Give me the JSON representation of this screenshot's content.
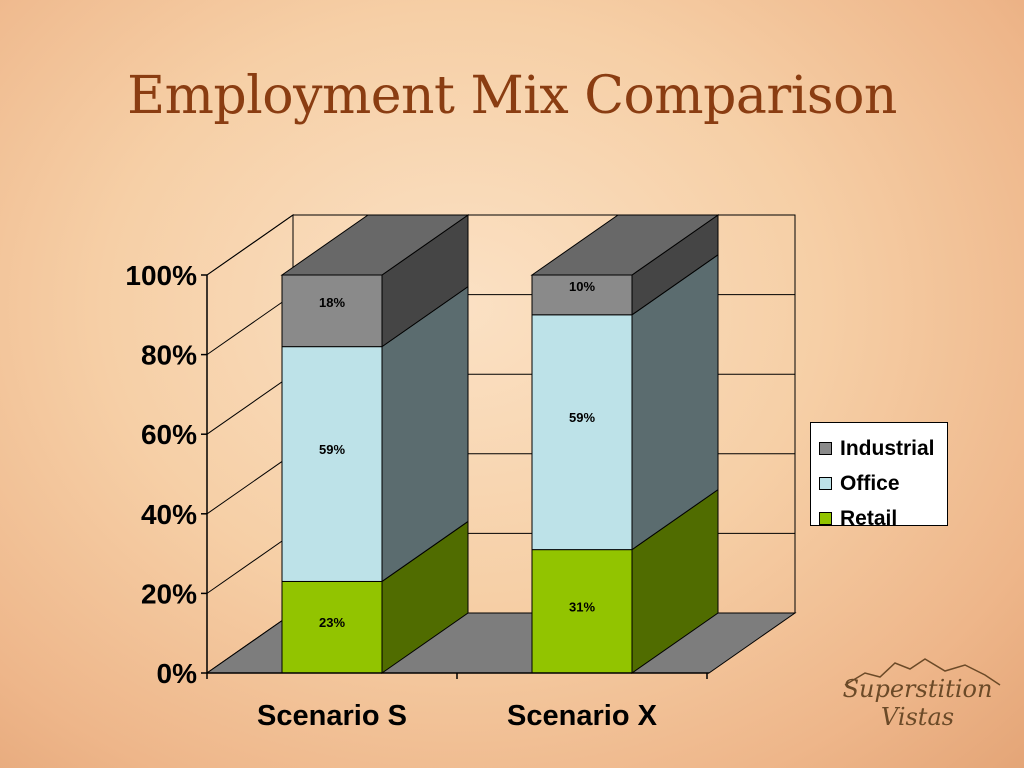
{
  "slide": {
    "title": "Employment Mix Comparison"
  },
  "logo": {
    "text": "Superstition Vistas"
  },
  "colors": {
    "industrial": "#8a8a8a",
    "office": "#bde2e8",
    "retail": "#92c400",
    "floor": "#7d7d7d",
    "accent_title": "#8a3d12"
  },
  "chart_data": {
    "type": "bar",
    "stacked": true,
    "three_d": true,
    "percent_stacked": true,
    "categories": [
      "Scenario S",
      "Scenario X"
    ],
    "series": [
      {
        "name": "Retail",
        "values": [
          23,
          31
        ]
      },
      {
        "name": "Office",
        "values": [
          59,
          59
        ]
      },
      {
        "name": "Industrial",
        "values": [
          18,
          10
        ]
      }
    ],
    "data_labels": [
      [
        "23%",
        "59%",
        "18%"
      ],
      [
        "31%",
        "59%",
        "10%"
      ]
    ],
    "yticks": [
      "0%",
      "20%",
      "40%",
      "60%",
      "80%",
      "100%"
    ],
    "ylim": [
      0,
      100
    ],
    "grid": true,
    "legend": {
      "position": "right",
      "entries": [
        "Industrial",
        "Office",
        "Retail"
      ]
    }
  }
}
